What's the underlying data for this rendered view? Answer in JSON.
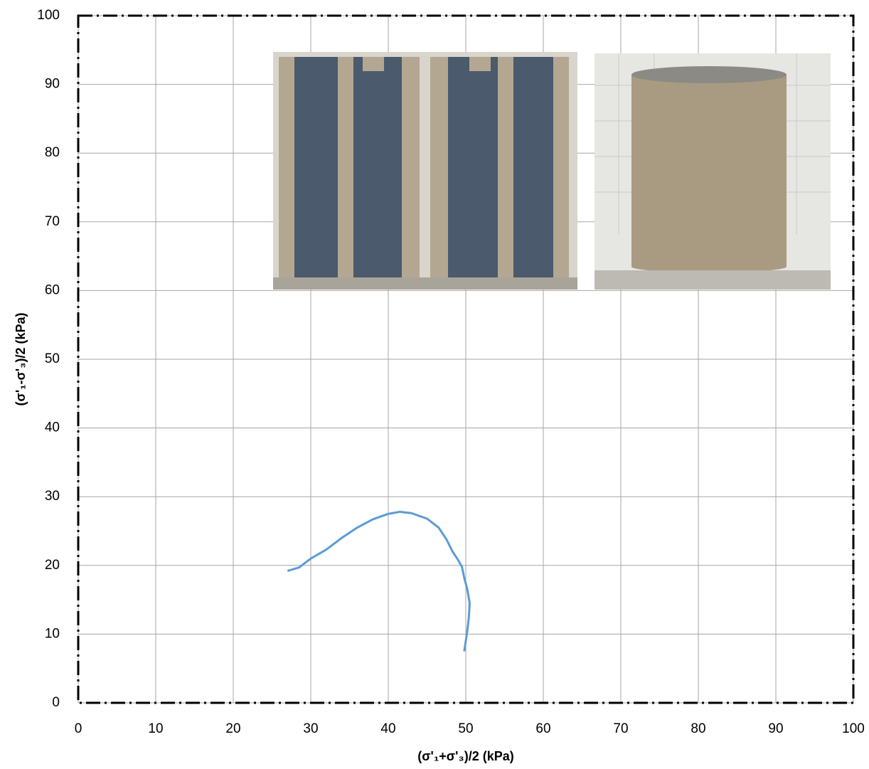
{
  "chart_data": {
    "type": "line",
    "x_label": "(σ'₁+σ'₃)/2  (kPa)",
    "y_label": "(σ'₁-σ'₃)/2  (kPa)",
    "x": [
      27.0,
      28.5,
      30,
      32,
      34,
      36,
      38,
      40,
      41.5,
      43,
      45,
      46.5,
      47.5,
      48.3,
      49,
      49.5,
      49.8,
      50.2,
      50.5,
      50.4,
      50.2,
      50.0,
      49.8
    ],
    "values": [
      19.2,
      19.7,
      21,
      22.3,
      24,
      25.5,
      26.7,
      27.5,
      27.8,
      27.6,
      26.8,
      25.5,
      23.8,
      22,
      20.8,
      19.8,
      18.2,
      16.5,
      14.5,
      12.5,
      10.5,
      9,
      7.5
    ],
    "color": "#5b9bd5",
    "xlim": [
      0,
      100
    ],
    "xticks": [
      0,
      10,
      20,
      30,
      40,
      50,
      60,
      70,
      80,
      90,
      100
    ],
    "ylim": [
      0,
      100
    ],
    "yticks": [
      0,
      10,
      20,
      30,
      40,
      50,
      60,
      70,
      80,
      90,
      100
    ],
    "grid": true
  }
}
